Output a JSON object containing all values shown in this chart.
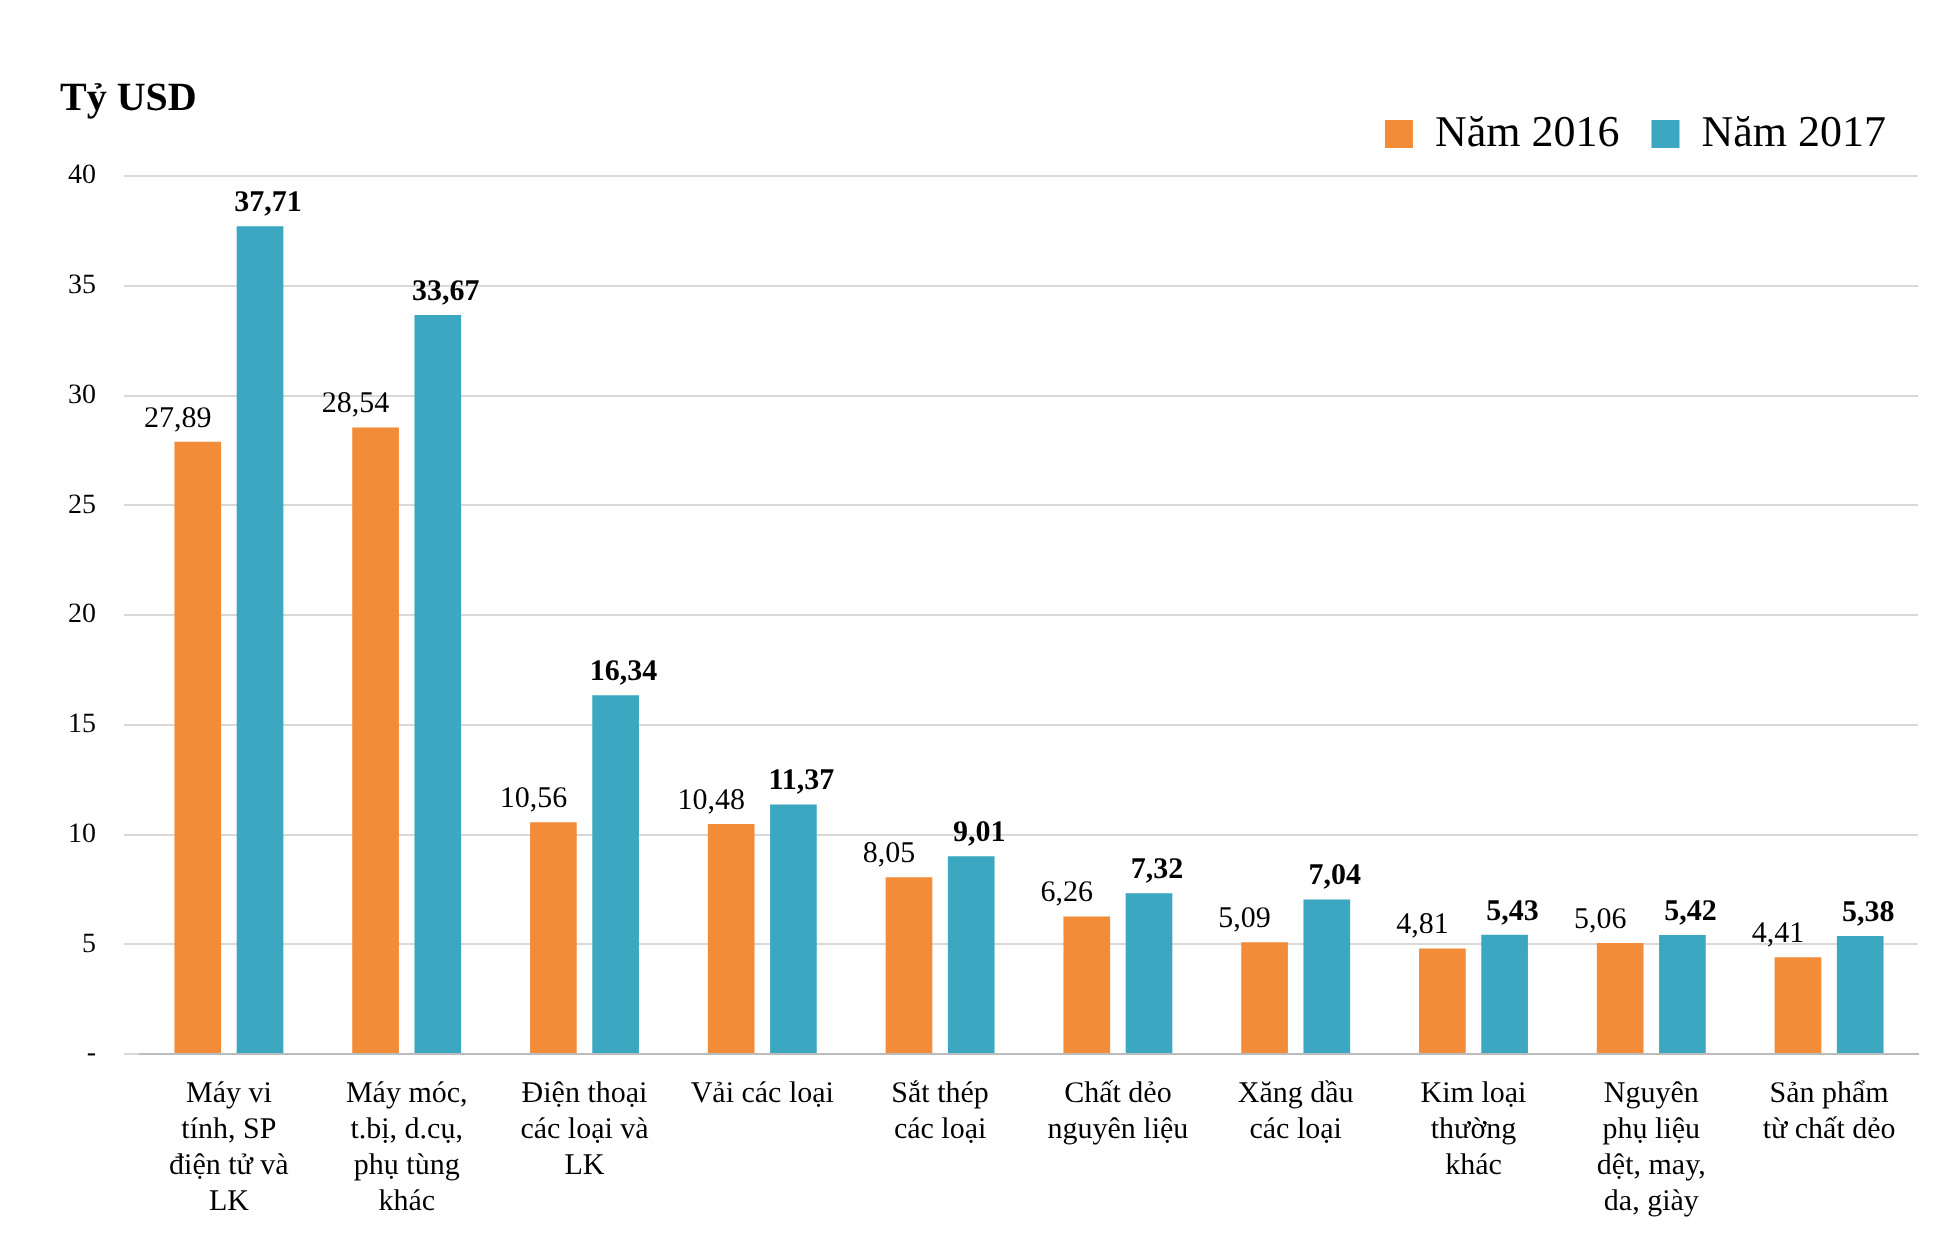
{
  "chart_data": {
    "type": "bar",
    "ylabel": "Tỷ USD",
    "categories": [
      "Máy vi tính, SP điện tử và LK",
      "Máy móc, t.bị, d.cụ, phụ tùng khác",
      "Điện thoại các loại và LK",
      "Vải các loại",
      "Sắt thép các loại",
      "Chất dẻo nguyên liệu",
      "Xăng dầu các loại",
      "Kim loại thường khác",
      "Nguyên phụ liệu dệt, may, da, giày",
      "Sản phẩm từ chất dẻo"
    ],
    "series": [
      {
        "name": "Năm 2016",
        "color": "#f28c38",
        "values": [
          27.89,
          28.54,
          10.56,
          10.48,
          8.05,
          6.26,
          5.09,
          4.81,
          5.06,
          4.41
        ],
        "value_labels": [
          "27,89",
          "28,54",
          "10,56",
          "10,48",
          "8,05",
          "6,26",
          "5,09",
          "4,81",
          "5,06",
          "4,41"
        ]
      },
      {
        "name": "Năm 2017",
        "color": "#3ba7c0",
        "values": [
          37.71,
          33.67,
          16.34,
          11.37,
          9.01,
          7.32,
          7.04,
          5.43,
          5.42,
          5.38
        ],
        "value_labels": [
          "37,71",
          "33,67",
          "16,34",
          "11,37",
          "9,01",
          "7,32",
          "7,04",
          "5,43",
          "5,42",
          "5,38"
        ]
      }
    ],
    "ylim": [
      0,
      40
    ],
    "yticks": [
      {
        "value": 0,
        "label": "-"
      },
      5,
      10,
      15,
      20,
      25,
      30,
      35,
      40
    ],
    "grid": "y",
    "legend": "top right"
  }
}
